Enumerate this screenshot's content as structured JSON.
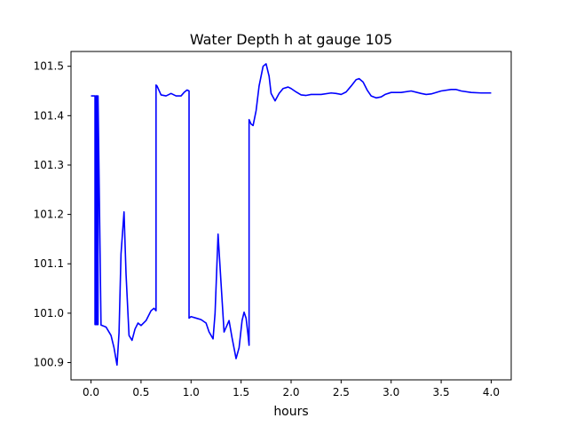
{
  "chart_data": {
    "type": "line",
    "title": "Water Depth h at gauge 105",
    "xlabel": "hours",
    "ylabel": "",
    "xlim": [
      -0.2,
      4.2
    ],
    "ylim": [
      100.865,
      101.53
    ],
    "xticks": [
      0.0,
      0.5,
      1.0,
      1.5,
      2.0,
      2.5,
      3.0,
      3.5,
      4.0
    ],
    "xtick_labels": [
      "0.0",
      "0.5",
      "1.0",
      "1.5",
      "2.0",
      "2.5",
      "3.0",
      "3.5",
      "4.0"
    ],
    "yticks": [
      100.9,
      101.0,
      101.1,
      101.2,
      101.3,
      101.4,
      101.5
    ],
    "ytick_labels": [
      "100.9",
      "101.0",
      "101.1",
      "101.2",
      "101.3",
      "101.4",
      "101.5"
    ],
    "grid": false,
    "legend": "none",
    "series": [
      {
        "color": "#0000ff",
        "x": [
          0.0,
          0.04,
          0.04,
          0.05,
          0.05,
          0.06,
          0.06,
          0.07,
          0.07,
          0.1,
          0.15,
          0.2,
          0.23,
          0.26,
          0.28,
          0.3,
          0.33,
          0.35,
          0.38,
          0.41,
          0.44,
          0.47,
          0.5,
          0.55,
          0.6,
          0.63,
          0.65,
          0.65,
          0.66,
          0.7,
          0.75,
          0.8,
          0.85,
          0.9,
          0.93,
          0.96,
          0.98,
          0.98,
          1.0,
          1.05,
          1.1,
          1.15,
          1.18,
          1.22,
          1.24,
          1.27,
          1.3,
          1.33,
          1.38,
          1.41,
          1.45,
          1.48,
          1.51,
          1.53,
          1.55,
          1.57,
          1.58,
          1.58,
          1.6,
          1.62,
          1.65,
          1.68,
          1.72,
          1.75,
          1.78,
          1.8,
          1.84,
          1.88,
          1.92,
          1.97,
          2.0,
          2.05,
          2.1,
          2.15,
          2.2,
          2.3,
          2.4,
          2.45,
          2.5,
          2.55,
          2.6,
          2.65,
          2.68,
          2.72,
          2.76,
          2.8,
          2.85,
          2.9,
          2.94,
          3.0,
          3.1,
          3.2,
          3.3,
          3.35,
          3.4,
          3.5,
          3.6,
          3.65,
          3.7,
          3.8,
          3.9,
          4.0
        ],
        "y": [
          101.44,
          101.44,
          100.977,
          100.977,
          101.44,
          101.44,
          100.977,
          100.977,
          101.44,
          100.976,
          100.972,
          100.955,
          100.93,
          100.895,
          100.96,
          101.12,
          101.205,
          101.08,
          100.955,
          100.945,
          100.968,
          100.98,
          100.975,
          100.985,
          101.005,
          101.01,
          101.005,
          101.462,
          101.46,
          101.442,
          101.44,
          101.445,
          101.44,
          101.44,
          101.447,
          101.452,
          101.45,
          100.99,
          100.993,
          100.99,
          100.987,
          100.98,
          100.962,
          100.948,
          101.0,
          101.16,
          101.06,
          100.962,
          100.985,
          100.95,
          100.908,
          100.93,
          100.985,
          101.002,
          100.99,
          100.955,
          100.935,
          101.392,
          101.383,
          101.38,
          101.41,
          101.46,
          101.5,
          101.505,
          101.48,
          101.445,
          101.43,
          101.445,
          101.455,
          101.458,
          101.455,
          101.448,
          101.442,
          101.441,
          101.443,
          101.443,
          101.446,
          101.445,
          101.443,
          101.448,
          101.46,
          101.473,
          101.475,
          101.468,
          101.452,
          101.44,
          101.436,
          101.438,
          101.443,
          101.447,
          101.447,
          101.45,
          101.445,
          101.443,
          101.444,
          101.45,
          101.453,
          101.453,
          101.45,
          101.447,
          101.446,
          101.446
        ]
      }
    ]
  }
}
